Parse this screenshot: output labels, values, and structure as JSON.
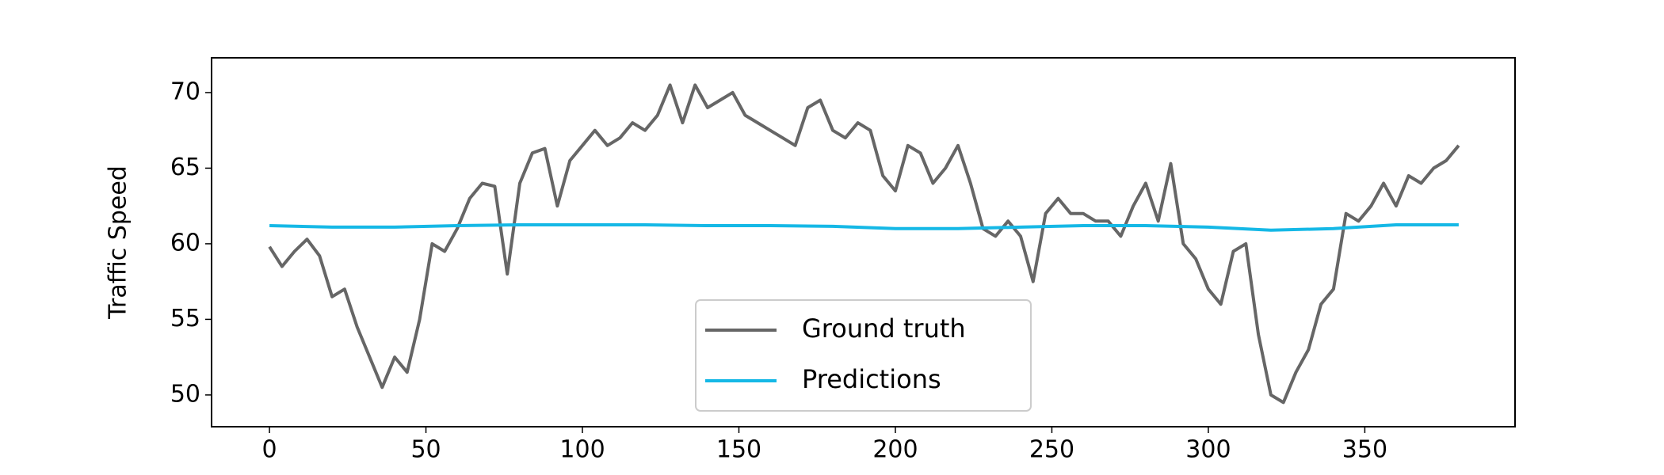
{
  "chart_data": {
    "type": "line",
    "y_label": "Traffic Speed",
    "xlim": [
      -18.5,
      398
    ],
    "xticks": [
      0,
      50,
      100,
      150,
      200,
      250,
      300,
      350
    ],
    "ylim": [
      47.9,
      72.3
    ],
    "yticks": [
      50,
      55,
      60,
      65,
      70
    ],
    "legend": "lower center",
    "series": [
      {
        "name": "Ground truth",
        "color": "#666666",
        "x": [
          0,
          4,
          8,
          12,
          16,
          20,
          24,
          28,
          32,
          36,
          40,
          44,
          48,
          52,
          56,
          60,
          64,
          68,
          72,
          76,
          80,
          84,
          88,
          92,
          96,
          100,
          104,
          108,
          112,
          116,
          120,
          124,
          128,
          132,
          136,
          140,
          144,
          148,
          152,
          156,
          160,
          164,
          168,
          172,
          176,
          180,
          184,
          188,
          192,
          196,
          200,
          204,
          208,
          212,
          216,
          220,
          224,
          228,
          232,
          236,
          240,
          244,
          248,
          252,
          256,
          260,
          264,
          268,
          272,
          276,
          280,
          284,
          288,
          292,
          296,
          300,
          304,
          308,
          312,
          316,
          320,
          324,
          328,
          332,
          336,
          340,
          344,
          348,
          352,
          356,
          360,
          364,
          368,
          372,
          376,
          380
        ],
        "values": [
          59.8,
          58.5,
          59.5,
          60.3,
          59.2,
          56.5,
          57.0,
          54.5,
          52.5,
          50.5,
          52.5,
          51.5,
          55.0,
          60.0,
          59.5,
          61.0,
          63.0,
          64.0,
          63.8,
          58.0,
          64.0,
          66.0,
          66.3,
          62.5,
          65.5,
          66.5,
          67.5,
          66.5,
          67.0,
          68.0,
          67.5,
          68.5,
          70.5,
          68.0,
          70.5,
          69.0,
          69.5,
          70.0,
          68.5,
          68.0,
          67.5,
          67.0,
          66.5,
          69.0,
          69.5,
          67.5,
          67.0,
          68.0,
          67.5,
          64.5,
          63.5,
          66.5,
          66.0,
          64.0,
          65.0,
          66.5,
          64.0,
          61.0,
          60.5,
          61.5,
          60.5,
          57.5,
          62.0,
          63.0,
          62.0,
          62.0,
          61.5,
          61.5,
          60.5,
          62.5,
          64.0,
          61.5,
          65.3,
          60.0,
          59.0,
          57.0,
          56.0,
          59.5,
          60.0,
          54.0,
          50.0,
          49.5,
          51.5,
          53.0,
          56.0,
          57.0,
          62.0,
          61.5,
          62.5,
          64.0,
          62.5,
          64.5,
          64.0,
          65.0,
          65.5,
          66.5
        ]
      },
      {
        "name": "Predictions",
        "color": "#15b8e6",
        "x": [
          0,
          20,
          40,
          60,
          80,
          100,
          120,
          140,
          160,
          180,
          200,
          220,
          240,
          260,
          280,
          300,
          320,
          340,
          360,
          380
        ],
        "values": [
          61.2,
          61.1,
          61.1,
          61.2,
          61.25,
          61.25,
          61.25,
          61.2,
          61.2,
          61.15,
          61.0,
          61.0,
          61.1,
          61.2,
          61.2,
          61.1,
          60.9,
          61.0,
          61.25,
          61.25
        ]
      }
    ]
  }
}
